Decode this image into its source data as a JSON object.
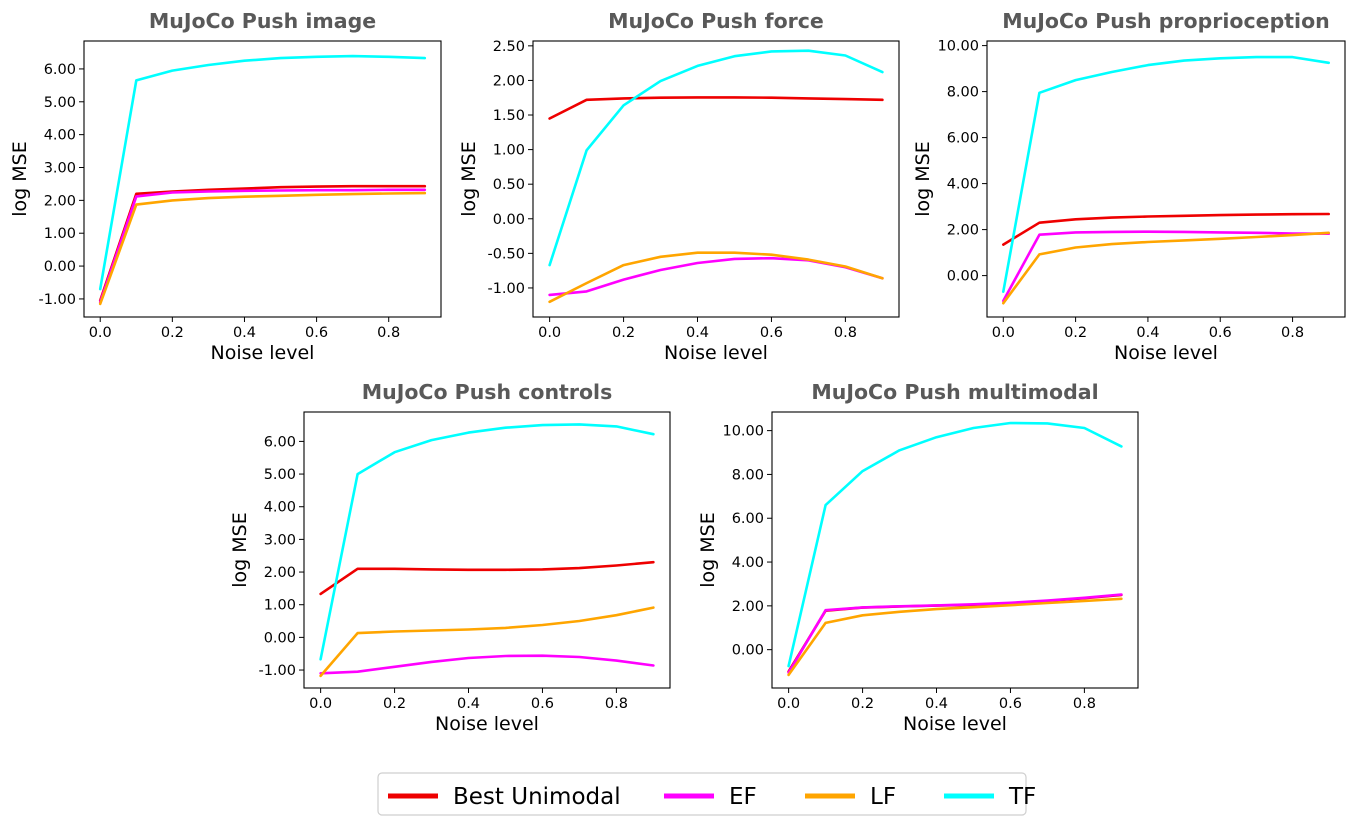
{
  "legend": {
    "items": [
      {
        "label": "Best Unimodal",
        "color": "#ee0000"
      },
      {
        "label": "EF",
        "color": "#ff00ff"
      },
      {
        "label": "LF",
        "color": "#ffa500"
      },
      {
        "label": "TF",
        "color": "#00ffff"
      }
    ]
  },
  "chart_data": [
    {
      "type": "line",
      "title": "MuJoCo Push image",
      "xlabel": "Noise level",
      "ylabel": "log MSE",
      "xlim": [
        -0.045,
        0.945
      ],
      "ylim": [
        -1.55,
        6.85
      ],
      "xticks": [
        0.0,
        0.2,
        0.4,
        0.6,
        0.8
      ],
      "xtick_labels": [
        "0.0",
        "0.2",
        "0.4",
        "0.6",
        "0.8"
      ],
      "yticks": [
        -1,
        0,
        1,
        2,
        3,
        4,
        5,
        6
      ],
      "ytick_labels": [
        "-1.00",
        "0.00",
        "1.00",
        "2.00",
        "3.00",
        "4.00",
        "5.00",
        "6.00"
      ],
      "x": [
        0.0,
        0.1,
        0.2,
        0.3,
        0.4,
        0.5,
        0.6,
        0.7,
        0.8,
        0.9
      ],
      "series": [
        {
          "name": "Best Unimodal",
          "values": [
            -1.05,
            2.2,
            2.27,
            2.32,
            2.36,
            2.4,
            2.42,
            2.43,
            2.43,
            2.43
          ]
        },
        {
          "name": "EF",
          "values": [
            -1.1,
            2.12,
            2.24,
            2.27,
            2.29,
            2.3,
            2.31,
            2.31,
            2.32,
            2.32
          ]
        },
        {
          "name": "LF",
          "values": [
            -1.15,
            1.87,
            2.0,
            2.07,
            2.11,
            2.14,
            2.17,
            2.19,
            2.21,
            2.22
          ]
        },
        {
          "name": "TF",
          "values": [
            -0.7,
            5.65,
            5.95,
            6.12,
            6.25,
            6.33,
            6.37,
            6.39,
            6.37,
            6.33
          ]
        }
      ]
    },
    {
      "type": "line",
      "title": "MuJoCo Push force",
      "xlabel": "Noise level",
      "ylabel": "log MSE",
      "xlim": [
        -0.045,
        0.945
      ],
      "ylim": [
        -1.42,
        2.57
      ],
      "xticks": [
        0.0,
        0.2,
        0.4,
        0.6,
        0.8
      ],
      "xtick_labels": [
        "0.0",
        "0.2",
        "0.4",
        "0.6",
        "0.8"
      ],
      "yticks": [
        -1.0,
        -0.5,
        0.0,
        0.5,
        1.0,
        1.5,
        2.0,
        2.5
      ],
      "ytick_labels": [
        "-1.00",
        "-0.50",
        "0.00",
        "0.50",
        "1.00",
        "1.50",
        "2.00",
        "2.50"
      ],
      "x": [
        0.0,
        0.1,
        0.2,
        0.3,
        0.4,
        0.5,
        0.6,
        0.7,
        0.8,
        0.9
      ],
      "series": [
        {
          "name": "Best Unimodal",
          "values": [
            1.45,
            1.72,
            1.74,
            1.75,
            1.755,
            1.755,
            1.75,
            1.74,
            1.73,
            1.72
          ]
        },
        {
          "name": "EF",
          "values": [
            -1.1,
            -1.05,
            -0.88,
            -0.74,
            -0.64,
            -0.58,
            -0.57,
            -0.6,
            -0.7,
            -0.86
          ]
        },
        {
          "name": "LF",
          "values": [
            -1.2,
            -0.93,
            -0.67,
            -0.55,
            -0.49,
            -0.49,
            -0.52,
            -0.59,
            -0.69,
            -0.86
          ]
        },
        {
          "name": "TF",
          "values": [
            -0.67,
            0.99,
            1.64,
            1.99,
            2.21,
            2.35,
            2.42,
            2.43,
            2.36,
            2.12
          ]
        }
      ]
    },
    {
      "type": "line",
      "title": "MuJoCo Push proprioception",
      "xlabel": "Noise level",
      "ylabel": "log MSE",
      "xlim": [
        -0.045,
        0.945
      ],
      "ylim": [
        -1.8,
        10.2
      ],
      "xticks": [
        0.0,
        0.2,
        0.4,
        0.6,
        0.8
      ],
      "xtick_labels": [
        "0.0",
        "0.2",
        "0.4",
        "0.6",
        "0.8"
      ],
      "yticks": [
        0,
        2,
        4,
        6,
        8,
        10
      ],
      "ytick_labels": [
        "0.00",
        "2.00",
        "4.00",
        "6.00",
        "8.00",
        "10.00"
      ],
      "x": [
        0.0,
        0.1,
        0.2,
        0.3,
        0.4,
        0.5,
        0.6,
        0.7,
        0.8,
        0.9
      ],
      "series": [
        {
          "name": "Best Unimodal",
          "values": [
            1.35,
            2.3,
            2.45,
            2.52,
            2.57,
            2.6,
            2.63,
            2.65,
            2.67,
            2.68
          ]
        },
        {
          "name": "EF",
          "values": [
            -1.1,
            1.78,
            1.88,
            1.9,
            1.91,
            1.9,
            1.88,
            1.86,
            1.83,
            1.82
          ]
        },
        {
          "name": "LF",
          "values": [
            -1.2,
            0.92,
            1.22,
            1.37,
            1.46,
            1.53,
            1.6,
            1.68,
            1.76,
            1.86
          ]
        },
        {
          "name": "TF",
          "values": [
            -0.7,
            7.95,
            8.5,
            8.85,
            9.15,
            9.35,
            9.45,
            9.5,
            9.5,
            9.25
          ]
        }
      ]
    },
    {
      "type": "line",
      "title": "MuJoCo Push controls",
      "xlabel": "Noise level",
      "ylabel": "log MSE",
      "xlim": [
        -0.045,
        0.945
      ],
      "ylim": [
        -1.55,
        6.9
      ],
      "xticks": [
        0.0,
        0.2,
        0.4,
        0.6,
        0.8
      ],
      "xtick_labels": [
        "0.0",
        "0.2",
        "0.4",
        "0.6",
        "0.8"
      ],
      "yticks": [
        -1,
        0,
        1,
        2,
        3,
        4,
        5,
        6
      ],
      "ytick_labels": [
        "-1.00",
        "0.00",
        "1.00",
        "2.00",
        "3.00",
        "4.00",
        "5.00",
        "6.00"
      ],
      "x": [
        0.0,
        0.1,
        0.2,
        0.3,
        0.4,
        0.5,
        0.6,
        0.7,
        0.8,
        0.9
      ],
      "series": [
        {
          "name": "Best Unimodal",
          "values": [
            1.33,
            2.1,
            2.1,
            2.08,
            2.07,
            2.07,
            2.08,
            2.12,
            2.2,
            2.3
          ]
        },
        {
          "name": "EF",
          "values": [
            -1.1,
            -1.05,
            -0.9,
            -0.75,
            -0.63,
            -0.57,
            -0.56,
            -0.6,
            -0.71,
            -0.86
          ]
        },
        {
          "name": "LF",
          "values": [
            -1.18,
            0.13,
            0.18,
            0.21,
            0.24,
            0.29,
            0.38,
            0.5,
            0.68,
            0.91
          ]
        },
        {
          "name": "TF",
          "values": [
            -0.67,
            5.0,
            5.67,
            6.04,
            6.27,
            6.42,
            6.5,
            6.52,
            6.46,
            6.22
          ]
        }
      ]
    },
    {
      "type": "line",
      "title": "MuJoCo Push multimodal",
      "xlabel": "Noise level",
      "ylabel": "log MSE",
      "xlim": [
        -0.045,
        0.945
      ],
      "ylim": [
        -1.75,
        10.85
      ],
      "xticks": [
        0.0,
        0.2,
        0.4,
        0.6,
        0.8
      ],
      "xtick_labels": [
        "0.0",
        "0.2",
        "0.4",
        "0.6",
        "0.8"
      ],
      "yticks": [
        0,
        2,
        4,
        6,
        8,
        10
      ],
      "ytick_labels": [
        "0.00",
        "2.00",
        "4.00",
        "6.00",
        "8.00",
        "10.00"
      ],
      "x": [
        0.0,
        0.1,
        0.2,
        0.3,
        0.4,
        0.5,
        0.6,
        0.7,
        0.8,
        0.9
      ],
      "series": [
        {
          "name": "Best Unimodal",
          "values": [
            -1.0,
            1.78,
            1.92,
            1.97,
            2.01,
            2.05,
            2.12,
            2.22,
            2.35,
            2.5
          ]
        },
        {
          "name": "EF",
          "values": [
            -1.05,
            1.8,
            1.93,
            1.98,
            2.02,
            2.07,
            2.14,
            2.24,
            2.37,
            2.52
          ]
        },
        {
          "name": "LF",
          "values": [
            -1.15,
            1.22,
            1.57,
            1.73,
            1.85,
            1.94,
            2.03,
            2.13,
            2.22,
            2.32
          ]
        },
        {
          "name": "TF",
          "values": [
            -0.75,
            6.6,
            8.15,
            9.1,
            9.7,
            10.12,
            10.35,
            10.33,
            10.12,
            9.28
          ]
        }
      ]
    }
  ]
}
